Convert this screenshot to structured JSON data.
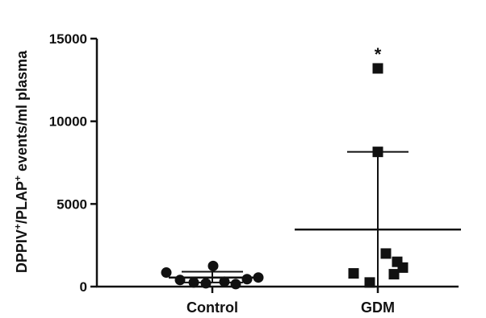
{
  "chart_data": {
    "type": "scatter",
    "y_title": {
      "parts": [
        {
          "text": "DPPIV",
          "sup": false
        },
        {
          "text": "+",
          "sup": true
        },
        {
          "text": "/PLAP",
          "sup": false
        },
        {
          "text": "+",
          "sup": true
        },
        {
          "text": " events/ml plasma",
          "sup": false
        }
      ]
    },
    "ylim": [
      0,
      15000
    ],
    "yticks": [
      0,
      5000,
      10000,
      15000
    ],
    "categories": [
      "Control",
      "GDM"
    ],
    "groups": [
      {
        "category": "Control",
        "marker": "circle",
        "points": [
          850,
          400,
          250,
          200,
          1250,
          300,
          150,
          450,
          550
        ],
        "mean": 550,
        "error": [
          250,
          900
        ]
      },
      {
        "category": "GDM",
        "marker": "square",
        "points": [
          13200,
          8150,
          800,
          250,
          2000,
          1500,
          750,
          1150
        ],
        "mean": 3450,
        "error": [
          0,
          8150
        ]
      }
    ],
    "annotations": [
      {
        "category": "GDM",
        "text": "*"
      }
    ],
    "colors": {
      "marks": "#111111"
    }
  }
}
